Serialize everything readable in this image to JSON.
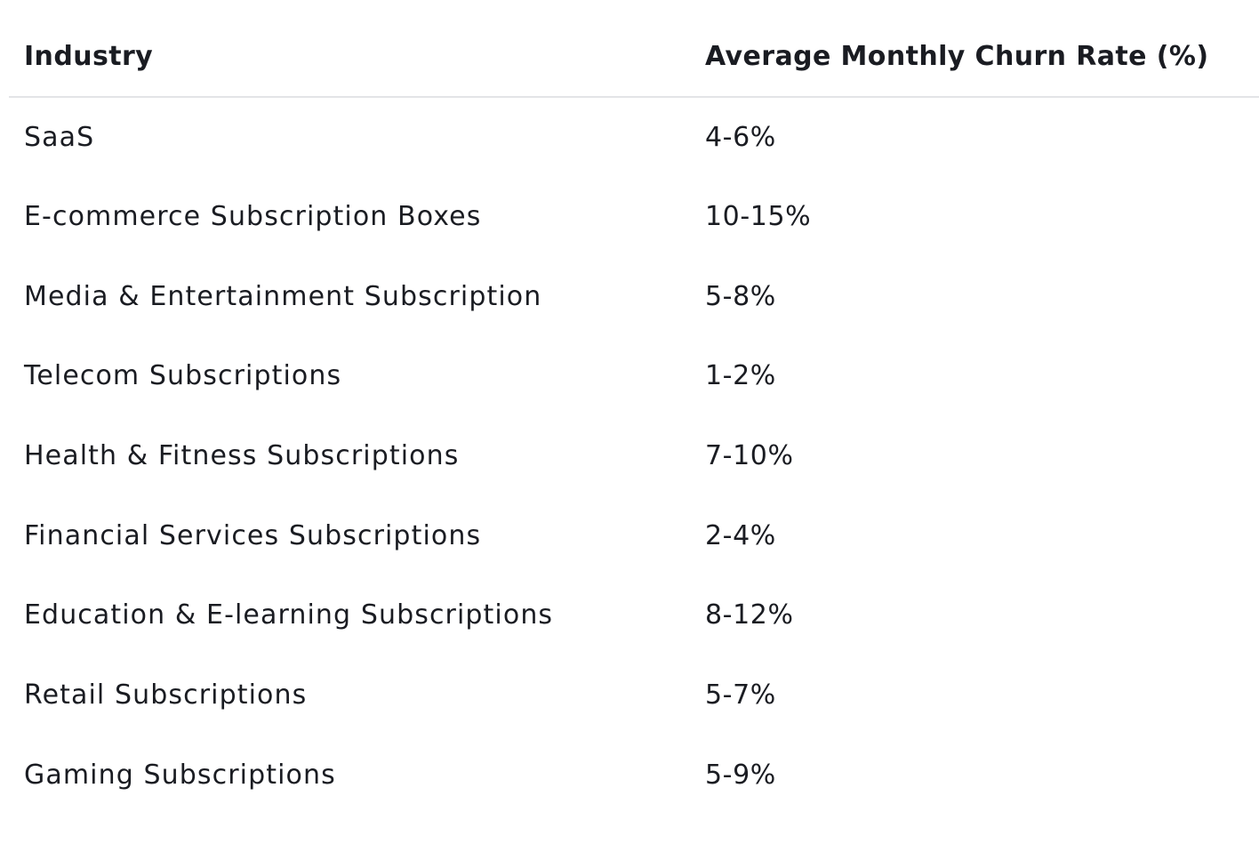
{
  "table": {
    "headers": {
      "industry": "Industry",
      "rate": "Average Monthly Churn Rate (%)"
    },
    "rows": [
      {
        "industry": "SaaS",
        "rate": "4-6%"
      },
      {
        "industry": "E-commerce Subscription Boxes",
        "rate": "10-15%"
      },
      {
        "industry": "Media & Entertainment Subscription",
        "rate": "5-8%"
      },
      {
        "industry": "Telecom Subscriptions",
        "rate": "1-2%"
      },
      {
        "industry": "Health & Fitness Subscriptions",
        "rate": "7-10%"
      },
      {
        "industry": "Financial Services Subscriptions",
        "rate": "2-4%"
      },
      {
        "industry": "Education & E-learning Subscriptions",
        "rate": "8-12%"
      },
      {
        "industry": "Retail Subscriptions",
        "rate": "5-7%"
      },
      {
        "industry": "Gaming Subscriptions",
        "rate": "5-9%"
      }
    ]
  }
}
